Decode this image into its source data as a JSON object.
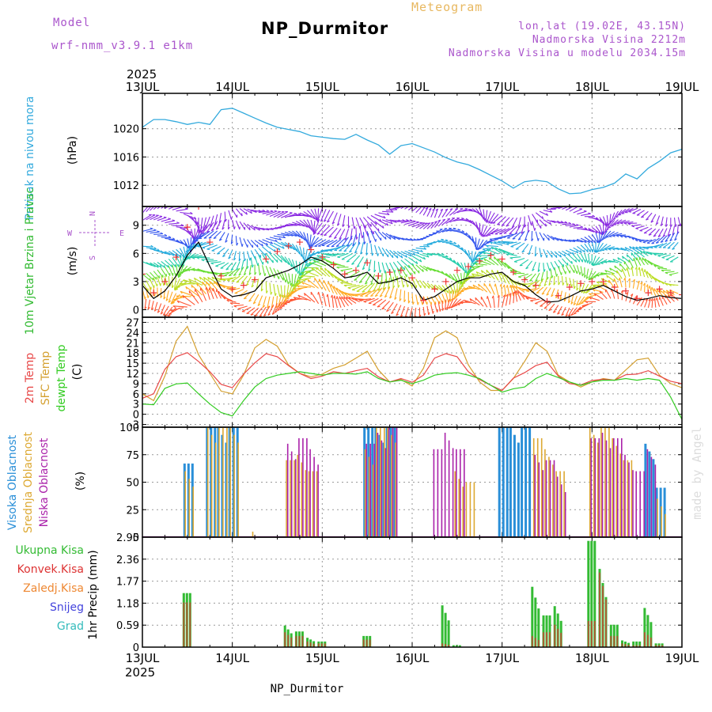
{
  "header": {
    "model_label": "Model",
    "model_name": "wrf-nmm_v3.9.1  e1km",
    "chart_title": "Meteogram",
    "station_title": "NP_Durmitor",
    "coords": "lon,lat (19.02E, 43.15N)",
    "elevation": "Nadmorska Visina 2212m",
    "model_elevation": "Nadmorska Visina u modelu 2034.15m"
  },
  "footer": {
    "station": "NP_Durmitor",
    "credit": "made by Angel"
  },
  "colors": {
    "pressure": "#33aadd",
    "temp2m": "#e84848",
    "sfc_temp": "#d4a030",
    "dewpoint": "#33cc22",
    "high_cloud": "#2a8fd8",
    "mid_cloud": "#dda933",
    "low_cloud": "#aa22aa",
    "total_precip": "#33bb33",
    "conv_precip": "#dd3333",
    "frozen_precip": "#ee8833",
    "snow": "#4444dd",
    "hail": "#33bbbb",
    "wind_mean": "#000000",
    "wind_gust": "#ee3333",
    "header_purple": "#aa55cc",
    "header_orange": "#e8b860"
  },
  "chart_data": [
    {
      "type": "line",
      "panel": "pressure",
      "title": "",
      "ylabel": "Pritisak na nivou mora",
      "unit": "(hPa)",
      "ylim": [
        1009,
        1025
      ],
      "yticks": [
        1012,
        1016,
        1020
      ],
      "x_start": "2025-07-13T00:00",
      "x_end": "2025-07-19T00:00",
      "x_step_hours": 3,
      "x_ticks": [
        "13JUL",
        "14JUL",
        "15JUL",
        "16JUL",
        "17JUL",
        "18JUL",
        "19JUL"
      ],
      "year_label": "2025",
      "series": [
        {
          "values": [
            1020.2,
            1021.3,
            1021.3,
            1021.0,
            1020.6,
            1020.9,
            1020.6,
            1022.7,
            1022.9,
            1022.2,
            1021.5,
            1020.8,
            1020.2,
            1019.9,
            1019.6,
            1019.0,
            1018.8,
            1018.6,
            1018.5,
            1019.2,
            1018.4,
            1017.7,
            1016.4,
            1017.6,
            1017.9,
            1017.3,
            1016.7,
            1015.9,
            1015.3,
            1014.9,
            1014.2,
            1013.4,
            1012.6,
            1011.6,
            1012.5,
            1012.7,
            1012.5,
            1011.5,
            1010.8,
            1010.9,
            1011.4,
            1011.7,
            1012.3,
            1013.6,
            1012.9,
            1014.4,
            1015.4,
            1016.6,
            1017.1
          ]
        }
      ]
    },
    {
      "type": "line",
      "panel": "wind",
      "title": "",
      "ylabel": "10m Vjetar Brzina i Pravac",
      "unit": "(m/s)",
      "ylim": [
        -0.8,
        11
      ],
      "yticks": [
        0,
        3,
        6,
        9
      ],
      "legend_direction": [
        "N",
        "W",
        "E",
        "S"
      ],
      "series": [
        {
          "name": "mean",
          "values": [
            2.6,
            1.2,
            2.0,
            3.6,
            5.8,
            7.2,
            4.6,
            2.2,
            1.4,
            1.6,
            2.0,
            3.4,
            3.8,
            4.2,
            4.8,
            5.6,
            5.2,
            4.4,
            3.4,
            3.6,
            4.0,
            2.8,
            3.0,
            3.4,
            2.8,
            1.0,
            1.4,
            2.2,
            3.0,
            3.4,
            3.4,
            3.8,
            4.0,
            3.0,
            2.6,
            1.6,
            0.8,
            0.9,
            1.4,
            2.0,
            2.2,
            2.6,
            2.0,
            1.4,
            1.0,
            1.2,
            1.5,
            1.3,
            1.2
          ]
        },
        {
          "name": "gust",
          "values": [
            3.8,
            1.8,
            3.0,
            5.6,
            8.8,
            11.0,
            7.2,
            3.6,
            2.2,
            2.6,
            3.2,
            5.4,
            6.2,
            6.8,
            7.2,
            6.4,
            5.6,
            4.8,
            3.8,
            4.2,
            5.0,
            3.6,
            4.0,
            4.2,
            3.4,
            1.0,
            2.2,
            3.0,
            4.2,
            4.6,
            5.2,
            5.8,
            5.4,
            4.0,
            3.2,
            2.6,
            0.9,
            1.5,
            2.4,
            2.8,
            3.0,
            3.0,
            2.4,
            2.0,
            1.2,
            1.8,
            2.2,
            1.8,
            1.6
          ]
        },
        {
          "name": "direction_deg",
          "values": [
            40,
            50,
            60,
            80,
            130,
            180,
            200,
            190,
            150,
            120,
            90,
            70,
            60,
            80,
            110,
            150,
            200,
            210,
            190,
            160,
            130,
            100,
            80,
            60,
            50,
            30,
            20,
            40,
            70,
            110,
            160,
            200,
            230,
            220,
            180,
            130,
            90,
            70,
            60,
            80,
            110,
            160,
            200,
            230,
            250,
            230,
            200,
            180,
            160
          ]
        }
      ]
    },
    {
      "type": "line",
      "panel": "temperature",
      "title": "",
      "ylabel": [
        "2m Temp",
        "SFC Temp",
        "dewpt Temp"
      ],
      "unit": "(C)",
      "ylim": [
        -3.8,
        28.5
      ],
      "yticks": [
        -3,
        0,
        3,
        6,
        9,
        12,
        15,
        18,
        21,
        24,
        27
      ],
      "series": [
        {
          "name": "2m Temp",
          "values": [
            4.7,
            6.0,
            13.2,
            16.9,
            18.1,
            15.5,
            12.5,
            8.8,
            7.8,
            11.8,
            15.1,
            17.8,
            16.9,
            14.3,
            12.0,
            10.5,
            11.2,
            12.5,
            12.0,
            12.8,
            13.5,
            11.0,
            9.5,
            10.5,
            9.4,
            11.5,
            16.5,
            17.8,
            16.9,
            12.5,
            10.2,
            8.5,
            7.0,
            10.6,
            12.2,
            14.3,
            15.3,
            11.2,
            9.0,
            8.6,
            9.9,
            10.3,
            10.0,
            11.6,
            11.8,
            12.8,
            11.2,
            9.7,
            9.0
          ]
        },
        {
          "name": "SFC Temp",
          "values": [
            6.0,
            4.0,
            11.2,
            21.5,
            25.8,
            17.5,
            12.0,
            6.8,
            6.0,
            11.5,
            19.5,
            22.0,
            20.0,
            14.5,
            12.0,
            11.0,
            11.8,
            13.5,
            14.5,
            16.5,
            18.5,
            13.0,
            9.5,
            10.2,
            8.3,
            13.5,
            22.5,
            24.5,
            22.5,
            14.5,
            9.5,
            7.0,
            7.0,
            10.5,
            15.5,
            21.0,
            18.5,
            11.5,
            9.5,
            8.0,
            9.5,
            10.5,
            10.0,
            13.0,
            16.0,
            16.5,
            11.5,
            9.0,
            7.8
          ]
        },
        {
          "name": "dewpt Temp",
          "values": [
            3.0,
            2.8,
            7.6,
            8.9,
            9.2,
            6.0,
            3.0,
            0.5,
            -0.5,
            4.0,
            8.0,
            10.5,
            11.5,
            12.0,
            12.5,
            12.0,
            11.5,
            12.0,
            12.0,
            11.8,
            12.5,
            10.5,
            9.5,
            10.0,
            9.0,
            10.0,
            11.5,
            12.0,
            12.2,
            11.5,
            10.5,
            8.5,
            6.5,
            7.5,
            8.0,
            10.5,
            12.0,
            10.8,
            9.5,
            8.5,
            9.5,
            10.0,
            10.0,
            10.5,
            10.0,
            10.5,
            10.0,
            5.0,
            -1.5
          ]
        }
      ]
    },
    {
      "type": "bar",
      "panel": "cloud",
      "title": "",
      "ylabel": [
        "Visoka Oblacnost",
        "Srednja Oblacnost",
        "Niska Oblacnost"
      ],
      "unit": "(%)",
      "ylim": [
        0,
        100
      ],
      "yticks": [
        0,
        25,
        50,
        75,
        100
      ],
      "series": [
        {
          "name": "Visoka Oblacnost",
          "values": [
            0,
            0,
            0,
            0,
            67,
            0,
            100,
            100,
            100,
            0,
            0,
            0,
            0,
            0,
            0,
            0,
            0,
            0,
            0,
            0,
            100,
            100,
            100,
            0,
            0,
            0,
            0,
            0,
            0,
            0,
            0,
            0,
            100,
            100,
            100,
            0,
            0,
            0,
            0,
            0,
            0,
            0,
            0,
            0,
            0,
            85,
            45,
            0,
            0
          ]
        },
        {
          "name": "Srednja Oblacnost",
          "values": [
            0,
            0,
            0,
            0,
            60,
            0,
            100,
            100,
            100,
            0,
            5,
            0,
            0,
            70,
            75,
            60,
            0,
            0,
            0,
            0,
            80,
            100,
            100,
            0,
            0,
            0,
            0,
            0,
            60,
            50,
            0,
            0,
            0,
            0,
            0,
            90,
            80,
            60,
            0,
            0,
            100,
            100,
            90,
            70,
            0,
            0,
            35,
            0,
            0
          ]
        },
        {
          "name": "Niska Oblacnost",
          "values": [
            0,
            0,
            0,
            0,
            0,
            0,
            0,
            0,
            0,
            0,
            0,
            0,
            0,
            85,
            90,
            80,
            0,
            0,
            0,
            0,
            85,
            95,
            100,
            0,
            0,
            0,
            80,
            95,
            80,
            0,
            0,
            0,
            0,
            0,
            0,
            75,
            70,
            55,
            0,
            0,
            90,
            95,
            90,
            75,
            60,
            80,
            0,
            0,
            0
          ]
        }
      ]
    },
    {
      "type": "bar",
      "panel": "precipitation",
      "title": "",
      "ylabel": "1hr Precip",
      "unit": "(mm)",
      "ylim": [
        0,
        2.95
      ],
      "yticks": [
        0,
        0.59,
        1.18,
        1.77,
        2.36,
        2.95
      ],
      "legend": [
        "Ukupna Kisa",
        "Konvek.Kisa",
        "Zaledj.Kisa",
        "Snijeg",
        "Grad"
      ],
      "series": [
        {
          "name": "Ukupna Kisa",
          "values": [
            0,
            0,
            0,
            0,
            1.45,
            0,
            0,
            0,
            0,
            0,
            0,
            0,
            0,
            0.58,
            0.42,
            0.25,
            0.15,
            0,
            0,
            0,
            0.3,
            0,
            0,
            0,
            0,
            0,
            0,
            1.12,
            0.05,
            0,
            0,
            0,
            0,
            0,
            0,
            1.62,
            0.85,
            1.1,
            0,
            0,
            2.85,
            2.1,
            0.6,
            0.18,
            0.15,
            1.05,
            0.1,
            0,
            0
          ]
        },
        {
          "name": "Konvek.Kisa",
          "values": [
            0,
            0,
            0,
            0,
            1.2,
            0,
            0,
            0,
            0,
            0,
            0,
            0,
            0,
            0.4,
            0.3,
            0.15,
            0.1,
            0,
            0,
            0,
            0.2,
            0,
            0,
            0,
            0,
            0,
            0,
            0.1,
            0,
            0,
            0,
            0,
            0,
            0,
            0,
            0.3,
            0.4,
            0.6,
            0,
            0,
            0.7,
            2.0,
            0.3,
            0.1,
            0.05,
            0.4,
            0.05,
            0,
            0
          ]
        }
      ]
    }
  ]
}
